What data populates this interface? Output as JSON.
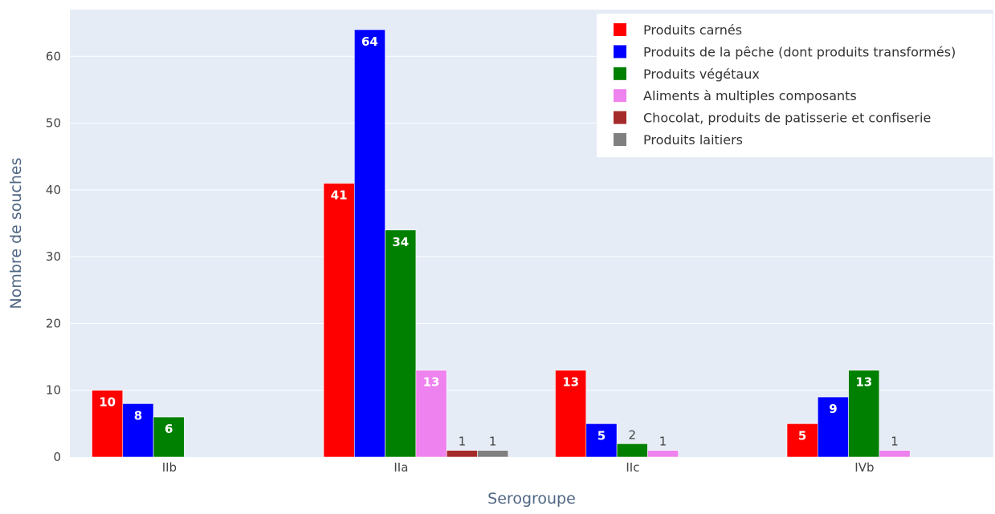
{
  "chart_data": {
    "type": "bar",
    "xlabel": "Serogroupe",
    "ylabel": "Nombre de souches",
    "categories": [
      "IIb",
      "IIa",
      "IIc",
      "IVb"
    ],
    "ylim": [
      0,
      67
    ],
    "yticks": [
      0,
      10,
      20,
      30,
      40,
      50,
      60
    ],
    "grid": true,
    "legend_position": "top-right",
    "series": [
      {
        "name": "Produits carnés",
        "color": "#ff0000",
        "values": [
          10,
          41,
          13,
          5
        ]
      },
      {
        "name": "Produits de la pêche (dont produits transformés)",
        "color": "#0000ff",
        "values": [
          8,
          64,
          5,
          9
        ]
      },
      {
        "name": "Produits végétaux",
        "color": "#008000",
        "values": [
          6,
          34,
          2,
          13
        ]
      },
      {
        "name": "Aliments à multiples composants",
        "color": "#ee82ee",
        "values": [
          null,
          13,
          1,
          1
        ]
      },
      {
        "name": "Chocolat, produits de patisserie et confiserie",
        "color": "#a52a2a",
        "values": [
          null,
          1,
          null,
          null
        ]
      },
      {
        "name": "Produits laitiers",
        "color": "#808080",
        "values": [
          null,
          1,
          null,
          null
        ]
      }
    ]
  }
}
